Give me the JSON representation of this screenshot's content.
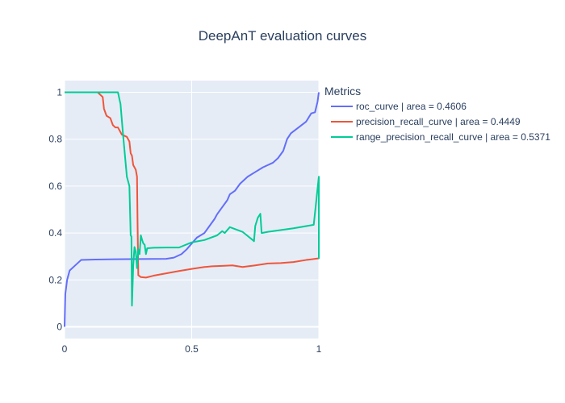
{
  "chart_data": {
    "type": "line",
    "title": "DeepAnT evaluation curves",
    "xlabel": "",
    "ylabel": "",
    "xlim": [
      0,
      1
    ],
    "ylim": [
      -0.05,
      1.05
    ],
    "x_ticks": [
      0,
      0.5,
      1
    ],
    "x_tick_labels": [
      "0",
      "0.5",
      "1"
    ],
    "y_ticks": [
      0,
      0.2,
      0.4,
      0.6,
      0.8,
      1
    ],
    "y_tick_labels": [
      "0",
      "0.2",
      "0.4",
      "0.6",
      "0.8",
      "1"
    ],
    "legend_title": "Metrics",
    "legend_position": "right",
    "series": [
      {
        "name": "roc_curve | area = 0.4606",
        "color": "#636efa",
        "points": [
          [
            0,
            0
          ],
          [
            0.003,
            0.14
          ],
          [
            0.01,
            0.2
          ],
          [
            0.02,
            0.24
          ],
          [
            0.04,
            0.26
          ],
          [
            0.065,
            0.285
          ],
          [
            0.12,
            0.287
          ],
          [
            0.2,
            0.288
          ],
          [
            0.3,
            0.289
          ],
          [
            0.4,
            0.29
          ],
          [
            0.43,
            0.295
          ],
          [
            0.46,
            0.31
          ],
          [
            0.48,
            0.33
          ],
          [
            0.5,
            0.355
          ],
          [
            0.52,
            0.38
          ],
          [
            0.55,
            0.4
          ],
          [
            0.57,
            0.43
          ],
          [
            0.59,
            0.46
          ],
          [
            0.6,
            0.48
          ],
          [
            0.62,
            0.51
          ],
          [
            0.64,
            0.54
          ],
          [
            0.65,
            0.565
          ],
          [
            0.67,
            0.58
          ],
          [
            0.69,
            0.61
          ],
          [
            0.72,
            0.64
          ],
          [
            0.75,
            0.66
          ],
          [
            0.78,
            0.68
          ],
          [
            0.82,
            0.7
          ],
          [
            0.84,
            0.72
          ],
          [
            0.86,
            0.75
          ],
          [
            0.875,
            0.8
          ],
          [
            0.89,
            0.825
          ],
          [
            0.92,
            0.85
          ],
          [
            0.95,
            0.875
          ],
          [
            0.97,
            0.91
          ],
          [
            0.985,
            0.915
          ],
          [
            0.995,
            0.96
          ],
          [
            1,
            1
          ]
        ]
      },
      {
        "name": "precision_recall_curve | area = 0.4449",
        "color": "#ef553b",
        "points": [
          [
            0,
            1
          ],
          [
            0.13,
            1
          ],
          [
            0.15,
            0.98
          ],
          [
            0.155,
            0.93
          ],
          [
            0.165,
            0.9
          ],
          [
            0.18,
            0.89
          ],
          [
            0.19,
            0.86
          ],
          [
            0.2,
            0.85
          ],
          [
            0.21,
            0.85
          ],
          [
            0.225,
            0.82
          ],
          [
            0.245,
            0.81
          ],
          [
            0.255,
            0.79
          ],
          [
            0.26,
            0.74
          ],
          [
            0.265,
            0.73
          ],
          [
            0.27,
            0.69
          ],
          [
            0.28,
            0.67
          ],
          [
            0.285,
            0.64
          ],
          [
            0.287,
            0.45
          ],
          [
            0.29,
            0.22
          ],
          [
            0.3,
            0.212
          ],
          [
            0.32,
            0.21
          ],
          [
            0.35,
            0.218
          ],
          [
            0.4,
            0.228
          ],
          [
            0.45,
            0.238
          ],
          [
            0.5,
            0.247
          ],
          [
            0.55,
            0.255
          ],
          [
            0.58,
            0.258
          ],
          [
            0.62,
            0.26
          ],
          [
            0.66,
            0.262
          ],
          [
            0.7,
            0.255
          ],
          [
            0.75,
            0.262
          ],
          [
            0.8,
            0.27
          ],
          [
            0.85,
            0.272
          ],
          [
            0.9,
            0.276
          ],
          [
            0.95,
            0.285
          ],
          [
            1,
            0.292
          ]
        ]
      },
      {
        "name": "range_precision_recall_curve | area = 0.5371",
        "color": "#00cc96",
        "points": [
          [
            0,
            1
          ],
          [
            0.21,
            1
          ],
          [
            0.22,
            0.95
          ],
          [
            0.23,
            0.82
          ],
          [
            0.245,
            0.64
          ],
          [
            0.255,
            0.6
          ],
          [
            0.26,
            0.39
          ],
          [
            0.263,
            0.385
          ],
          [
            0.265,
            0.09
          ],
          [
            0.27,
            0.26
          ],
          [
            0.275,
            0.34
          ],
          [
            0.28,
            0.32
          ],
          [
            0.283,
            0.28
          ],
          [
            0.285,
            0.25
          ],
          [
            0.29,
            0.33
          ],
          [
            0.295,
            0.31
          ],
          [
            0.3,
            0.39
          ],
          [
            0.305,
            0.37
          ],
          [
            0.31,
            0.355
          ],
          [
            0.315,
            0.35
          ],
          [
            0.32,
            0.31
          ],
          [
            0.325,
            0.335
          ],
          [
            0.35,
            0.337
          ],
          [
            0.4,
            0.338
          ],
          [
            0.45,
            0.338
          ],
          [
            0.5,
            0.36
          ],
          [
            0.55,
            0.37
          ],
          [
            0.6,
            0.39
          ],
          [
            0.62,
            0.408
          ],
          [
            0.63,
            0.4
          ],
          [
            0.65,
            0.425
          ],
          [
            0.7,
            0.405
          ],
          [
            0.74,
            0.37
          ],
          [
            0.745,
            0.365
          ],
          [
            0.75,
            0.43
          ],
          [
            0.76,
            0.465
          ],
          [
            0.77,
            0.482
          ],
          [
            0.775,
            0.4
          ],
          [
            0.8,
            0.405
          ],
          [
            0.9,
            0.42
          ],
          [
            0.98,
            0.435
          ],
          [
            1,
            0.64
          ],
          [
            1,
            0.29
          ]
        ]
      }
    ]
  }
}
